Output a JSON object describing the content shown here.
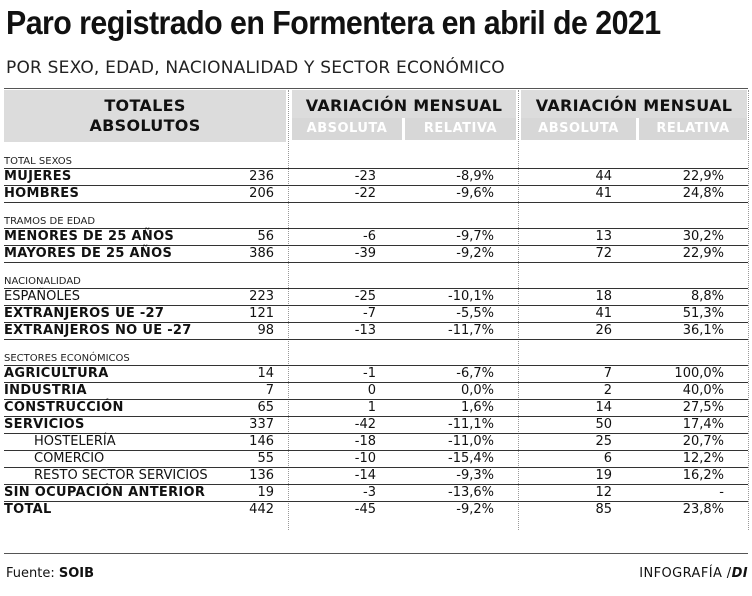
{
  "title": "Paro registrado en Formentera en abril de 2021",
  "subtitle": "POR SEXO, EDAD, NACIONALIDAD Y SECTOR ECONÓMICO",
  "header": {
    "totals_line1": "TOTALES",
    "totals_line2": "ABSOLUTOS",
    "group1": "VARIACIÓN MENSUAL",
    "group2": "VARIACIÓN MENSUAL",
    "absoluta": "ABSOLUTA",
    "relativa": "RELATIVA"
  },
  "rows": [
    {
      "type": "section",
      "label": "TOTAL SEXOS"
    },
    {
      "type": "data",
      "label": "MUJERES",
      "bold": true,
      "indent": false,
      "total": "236",
      "m_abs": "-23",
      "m_rel": "-8,9%",
      "a_abs": "44",
      "a_rel": "22,9%"
    },
    {
      "type": "data",
      "label": "HOMBRES",
      "bold": true,
      "indent": false,
      "total": "206",
      "m_abs": "-22",
      "m_rel": "-9,6%",
      "a_abs": "41",
      "a_rel": "24,8%"
    },
    {
      "type": "section",
      "label": "TRAMOS DE EDAD"
    },
    {
      "type": "data",
      "label": "MENORES DE 25 AÑOS",
      "bold": true,
      "indent": false,
      "total": "56",
      "m_abs": "-6",
      "m_rel": "-9,7%",
      "a_abs": "13",
      "a_rel": "30,2%"
    },
    {
      "type": "data",
      "label": "MAYORES DE 25 AÑOS",
      "bold": true,
      "indent": false,
      "total": "386",
      "m_abs": "-39",
      "m_rel": "-9,2%",
      "a_abs": "72",
      "a_rel": "22,9%"
    },
    {
      "type": "section",
      "label": "NACIONALIDAD"
    },
    {
      "type": "data",
      "label": "ESPAÑOLES",
      "bold": false,
      "indent": false,
      "total": "223",
      "m_abs": "-25",
      "m_rel": "-10,1%",
      "a_abs": "18",
      "a_rel": "8,8%"
    },
    {
      "type": "data",
      "label": "EXTRANJEROS UE -27",
      "bold": true,
      "indent": false,
      "total": "121",
      "m_abs": "-7",
      "m_rel": "-5,5%",
      "a_abs": "41",
      "a_rel": "51,3%"
    },
    {
      "type": "data",
      "label": "EXTRANJEROS NO UE -27",
      "bold": true,
      "indent": false,
      "total": "98",
      "m_abs": "-13",
      "m_rel": "-11,7%",
      "a_abs": "26",
      "a_rel": "36,1%"
    },
    {
      "type": "section",
      "label": "SECTORES ECONÓMICOS"
    },
    {
      "type": "data",
      "label": "AGRICULTURA",
      "bold": true,
      "indent": false,
      "total": "14",
      "m_abs": "-1",
      "m_rel": "-6,7%",
      "a_abs": "7",
      "a_rel": "100,0%"
    },
    {
      "type": "data",
      "label": "INDUSTRIA",
      "bold": true,
      "indent": false,
      "total": "7",
      "m_abs": "0",
      "m_rel": "0,0%",
      "a_abs": "2",
      "a_rel": "40,0%"
    },
    {
      "type": "data",
      "label": "CONSTRUCCIÓN",
      "bold": true,
      "indent": false,
      "total": "65",
      "m_abs": "1",
      "m_rel": "1,6%",
      "a_abs": "14",
      "a_rel": "27,5%"
    },
    {
      "type": "data",
      "label": "SERVICIOS",
      "bold": true,
      "indent": false,
      "total": "337",
      "m_abs": "-42",
      "m_rel": "-11,1%",
      "a_abs": "50",
      "a_rel": "17,4%"
    },
    {
      "type": "data",
      "label": "HOSTELERÍA",
      "bold": false,
      "indent": true,
      "total": "146",
      "m_abs": "-18",
      "m_rel": "-11,0%",
      "a_abs": "25",
      "a_rel": "20,7%"
    },
    {
      "type": "data",
      "label": "COMERCIO",
      "bold": false,
      "indent": true,
      "total": "55",
      "m_abs": "-10",
      "m_rel": "-15,4%",
      "a_abs": "6",
      "a_rel": "12,2%"
    },
    {
      "type": "data",
      "label": "RESTO SECTOR SERVICIOS",
      "bold": false,
      "indent": true,
      "total": "136",
      "m_abs": "-14",
      "m_rel": "-9,3%",
      "a_abs": "19",
      "a_rel": "16,2%"
    },
    {
      "type": "data",
      "label": "SIN OCUPACIÓN ANTERIOR",
      "bold": true,
      "indent": false,
      "total": "19",
      "m_abs": "-3",
      "m_rel": "-13,6%",
      "a_abs": "12",
      "a_rel": "-"
    },
    {
      "type": "data",
      "label": "TOTAL",
      "bold": true,
      "indent": false,
      "total": "442",
      "m_abs": "-45",
      "m_rel": "-9,2%",
      "a_abs": "85",
      "a_rel": "23,8%"
    }
  ],
  "footer": {
    "source_prefix": "Fuente: ",
    "source_name": "SOIB",
    "credit_prefix": "INFOGRAFÍA /",
    "credit_name": "DI"
  },
  "colors": {
    "header_shade": "#dcdcdc",
    "subheader_shade": "#d7d7d7",
    "text": "#111111"
  }
}
